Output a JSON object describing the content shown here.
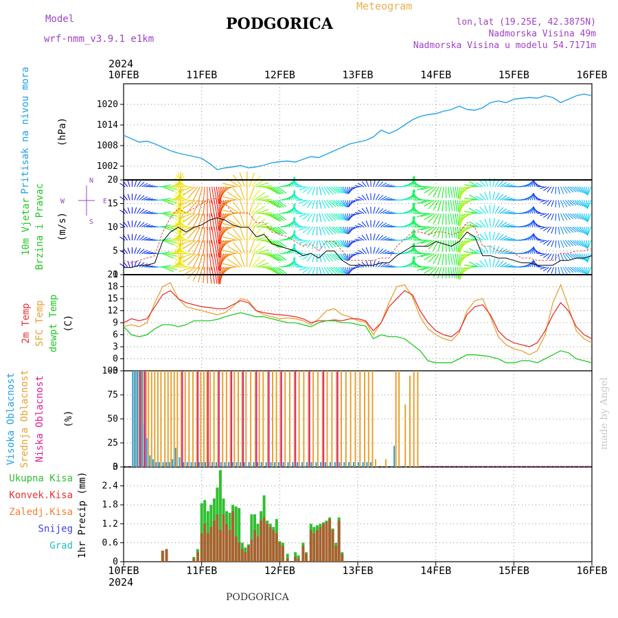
{
  "header": {
    "model_label": "Model",
    "model_name": "wrf-nmm_v3.9.1 e1km",
    "title": "PODGORICA",
    "meteogram": "Meteogram",
    "lonlat": "lon,lat (19.25E, 42.3875N)",
    "elevation": "Nadmorska Visina 49m",
    "model_elevation": "Nadmorska Visina u modelu 54.7171m"
  },
  "footer": {
    "location": "PODGORICA",
    "credit": "made by Angel"
  },
  "time_axis": {
    "year": "2024",
    "labels": [
      "10FEB",
      "11FEB",
      "12FEB",
      "13FEB",
      "14FEB",
      "15FEB",
      "16FEB"
    ]
  },
  "panel_labels": {
    "pressure": [
      "Pritisak na nivou mora"
    ],
    "pressure_unit": "(hPa)",
    "wind": [
      "10m Vjetar",
      "Brzina i Pravac"
    ],
    "wind_unit": "(m/s)",
    "wind_compass": [
      "W",
      "N",
      "E",
      "S"
    ],
    "temp": [
      "2m Temp",
      "SFC Temp",
      "dewpt Temp"
    ],
    "temp_unit": "(C)",
    "cloud": [
      "Visoka Oblacnost",
      "Srednja Oblacnost",
      "Niska Oblacnost"
    ],
    "cloud_unit": "(%)",
    "precip_legend": [
      "Ukupna Kisa",
      "Konvek.Kisa",
      "Zaledj.Kisa",
      "Snijeg",
      "Grad"
    ],
    "precip_unit": "1hr Precip (mm)"
  },
  "colors": {
    "pressure": "#20a0e8",
    "temp2m": "#e83030",
    "sfc": "#e8a030",
    "dew": "#20c820",
    "wind_line": "#000000",
    "gust": "#e84040",
    "cloud_high": "#20a0e8",
    "cloud_mid": "#e8a030",
    "cloud_low": "#e02090",
    "rain_total": "#30c030",
    "rain_conv": "#e83030",
    "freezing": "#f08030",
    "snow": "#4040e0",
    "hail": "#20c0c0",
    "purple": "#a040c8"
  },
  "chart_data": [
    {
      "type": "line",
      "name": "sea-level pressure",
      "ylabel": "(hPa)",
      "ylim": [
        998,
        1026
      ],
      "yticks": [
        1002,
        1008,
        1014,
        1020
      ],
      "x_days": [
        0,
        0.1,
        0.2,
        0.3,
        0.4,
        0.5,
        0.6,
        0.7,
        0.8,
        0.9,
        1.0,
        1.1,
        1.2,
        1.3,
        1.4,
        1.5,
        1.6,
        1.7,
        1.8,
        1.9,
        2.0,
        2.1,
        2.2,
        2.3,
        2.4,
        2.5,
        2.6,
        2.7,
        2.8,
        2.9,
        3.0,
        3.1,
        3.2,
        3.3,
        3.4,
        3.5,
        3.6,
        3.7,
        3.8,
        3.9,
        4.0,
        4.1,
        4.2,
        4.3,
        4.4,
        4.5,
        4.6,
        4.7,
        4.8,
        4.9,
        5.0,
        5.1,
        5.2,
        5.3,
        5.4,
        5.5,
        5.6,
        5.7,
        5.8,
        5.9,
        6.0
      ],
      "values": [
        1011,
        1010,
        1009,
        1009.3,
        1008.5,
        1007.5,
        1006.5,
        1005.8,
        1005.3,
        1004.8,
        1004.3,
        1002.8,
        1001.0,
        1001.5,
        1001.8,
        1002.2,
        1001.5,
        1001.8,
        1002.3,
        1003.0,
        1003.3,
        1003.5,
        1003.2,
        1004.0,
        1004.8,
        1004.5,
        1005.5,
        1006.5,
        1007.5,
        1008.5,
        1009.0,
        1009.5,
        1010.5,
        1012.5,
        1011.5,
        1012.5,
        1014.0,
        1015.5,
        1016.5,
        1017.0,
        1017.3,
        1018.0,
        1018.5,
        1019.5,
        1018.5,
        1018.3,
        1019.0,
        1020.5,
        1021.0,
        1020.5,
        1021.5,
        1021.8,
        1022.0,
        1021.8,
        1022.5,
        1022.0,
        1020.5,
        1021.5,
        1022.5,
        1023.0,
        1022.5
      ]
    },
    {
      "type": "line",
      "name": "10m wind speed",
      "ylabel": "(m/s)",
      "ylim": [
        0,
        20
      ],
      "yticks": [
        0,
        5,
        10,
        15,
        20
      ],
      "x_days": [
        0,
        0.1,
        0.2,
        0.3,
        0.4,
        0.5,
        0.6,
        0.7,
        0.8,
        0.9,
        1.0,
        1.1,
        1.2,
        1.3,
        1.4,
        1.5,
        1.6,
        1.7,
        1.8,
        1.9,
        2.0,
        2.1,
        2.2,
        2.3,
        2.4,
        2.5,
        2.6,
        2.7,
        2.8,
        2.9,
        3.0,
        3.1,
        3.2,
        3.3,
        3.4,
        3.5,
        3.6,
        3.7,
        3.8,
        3.9,
        4.0,
        4.1,
        4.2,
        4.3,
        4.4,
        4.5,
        4.6,
        4.7,
        4.8,
        4.9,
        5.0,
        5.1,
        5.2,
        5.3,
        5.4,
        5.5,
        5.6,
        5.7,
        5.8,
        5.9,
        6.0
      ],
      "series": [
        {
          "name": "speed",
          "values": [
            1.5,
            1.5,
            2,
            2,
            2.5,
            7,
            9,
            10,
            9,
            10,
            10.5,
            11.5,
            12,
            11.5,
            10.5,
            10,
            10,
            8,
            8.5,
            6.5,
            6,
            5.5,
            5,
            4,
            4.5,
            3.5,
            5,
            5,
            3,
            2,
            2,
            2,
            2,
            2.5,
            2.5,
            4,
            5,
            6,
            6,
            6,
            7,
            6.5,
            6,
            7,
            9,
            8,
            4,
            4,
            3.5,
            3.5,
            3,
            2.5,
            2.5,
            2,
            2,
            2,
            3,
            3,
            3.5,
            3.5,
            4
          ]
        },
        {
          "values": [
            3,
            2.5,
            3,
            3.5,
            4,
            9,
            12,
            14,
            13,
            14,
            15,
            16,
            16,
            15,
            13,
            13,
            13,
            11,
            11,
            9,
            8.5,
            8,
            7,
            6,
            6.5,
            5,
            7,
            7,
            5,
            3,
            3,
            3,
            3,
            3.5,
            3.5,
            6,
            7.5,
            9,
            9,
            8.5,
            9,
            9,
            8.5,
            9,
            11,
            10,
            6,
            6,
            5,
            5,
            4.5,
            3.5,
            3.5,
            3,
            3,
            3,
            4.5,
            4.5,
            5,
            5,
            5.5
          ]
        }
      ]
    },
    {
      "type": "line",
      "name": "temperature",
      "ylabel": "(C)",
      "ylim": [
        -3,
        21
      ],
      "yticks": [
        -3,
        0,
        3,
        6,
        9,
        12,
        15,
        18,
        21
      ],
      "x_days": [
        0,
        0.1,
        0.2,
        0.3,
        0.4,
        0.5,
        0.6,
        0.7,
        0.8,
        0.9,
        1.0,
        1.1,
        1.2,
        1.3,
        1.4,
        1.5,
        1.6,
        1.7,
        1.8,
        1.9,
        2.0,
        2.1,
        2.2,
        2.3,
        2.4,
        2.5,
        2.6,
        2.7,
        2.8,
        2.9,
        3.0,
        3.1,
        3.2,
        3.3,
        3.4,
        3.5,
        3.6,
        3.7,
        3.8,
        3.9,
        4.0,
        4.1,
        4.2,
        4.3,
        4.4,
        4.5,
        4.6,
        4.7,
        4.8,
        4.9,
        5.0,
        5.1,
        5.2,
        5.3,
        5.4,
        5.5,
        5.6,
        5.7,
        5.8,
        5.9,
        6.0
      ],
      "series": [
        {
          "name": "2m Temp",
          "values": [
            9,
            10,
            9.5,
            10,
            13,
            16,
            17,
            15,
            14,
            13.5,
            13,
            12.8,
            12.5,
            12.5,
            13.5,
            14.5,
            14,
            12,
            11.5,
            11.2,
            11,
            10.8,
            10.5,
            10,
            9,
            9.5,
            9.5,
            9.7,
            9.5,
            10,
            10,
            9.5,
            7,
            9,
            13,
            15,
            17,
            16,
            12,
            9,
            7,
            6,
            5.5,
            7,
            11,
            13,
            13.5,
            11,
            7,
            5,
            4,
            3.5,
            3,
            4,
            7,
            11,
            14,
            12,
            8,
            6,
            5
          ]
        },
        {
          "name": "SFC Temp",
          "values": [
            8,
            8.5,
            8,
            9,
            14,
            18,
            19,
            15,
            13,
            12.5,
            12,
            11.5,
            11,
            11.5,
            13,
            15,
            14.5,
            12,
            11,
            10.5,
            10,
            10.2,
            10,
            9.5,
            8.5,
            10,
            12,
            12.5,
            11,
            10.5,
            9.5,
            9.2,
            6,
            9,
            14,
            18,
            18.5,
            15.5,
            10.5,
            7.5,
            6,
            5,
            4.5,
            6.5,
            12,
            14.5,
            15,
            10.5,
            5.5,
            3.5,
            2.5,
            2,
            1,
            2,
            6,
            14,
            18.5,
            13,
            7,
            5,
            4
          ]
        },
        {
          "name": "dewpt Temp",
          "values": [
            8,
            6,
            5.5,
            6,
            7.5,
            8.5,
            8.5,
            8,
            8.5,
            9.5,
            9.5,
            9.5,
            9.8,
            10.5,
            11,
            11.5,
            11,
            10.5,
            10.5,
            10,
            9.5,
            9,
            9,
            8.5,
            8,
            9,
            9.5,
            9.5,
            9,
            9,
            8.5,
            8.2,
            5,
            6,
            5.5,
            5.5,
            5,
            3.5,
            2,
            -0.5,
            -1,
            -1,
            -1,
            0,
            1,
            1,
            0.8,
            0.5,
            0,
            -1,
            -1,
            -0.5,
            -0.5,
            -1,
            0,
            1,
            2,
            1.5,
            0,
            -0.5,
            -1
          ]
        }
      ]
    },
    {
      "type": "bar",
      "name": "cloud cover",
      "ylabel": "(%)",
      "ylim": [
        0,
        100
      ],
      "yticks": [
        0,
        25,
        50,
        75,
        100
      ],
      "x_days": [
        0.13,
        0.16,
        0.19,
        0.22,
        0.25,
        0.28,
        0.31,
        0.35,
        0.39,
        0.43,
        0.47,
        0.52,
        0.56,
        0.6,
        0.64,
        0.68,
        0.73,
        0.78,
        0.83,
        0.88,
        0.93,
        0.98,
        1.02,
        1.06,
        1.1,
        1.15,
        1.2,
        1.26,
        1.31,
        1.36,
        1.41,
        1.46,
        1.51,
        1.56,
        1.62,
        1.68,
        1.73,
        1.78,
        1.84,
        1.9,
        1.95,
        2.0,
        2.06,
        2.12,
        2.18,
        2.24,
        2.3,
        2.36,
        2.42,
        2.48,
        2.54,
        2.6,
        2.66,
        2.72,
        2.78,
        2.84,
        2.9,
        2.96,
        3.02,
        3.08,
        3.13,
        3.18,
        3.22,
        3.35,
        3.42,
        3.48,
        3.52,
        3.6,
        3.66,
        3.71,
        3.76
      ],
      "series": [
        {
          "name": "Srednja Oblacnost",
          "values": [
            100,
            100,
            100,
            100,
            100,
            100,
            100,
            100,
            100,
            100,
            100,
            100,
            100,
            100,
            100,
            100,
            100,
            100,
            100,
            100,
            100,
            100,
            100,
            100,
            100,
            100,
            100,
            100,
            100,
            100,
            100,
            100,
            100,
            100,
            100,
            100,
            100,
            100,
            100,
            100,
            100,
            100,
            100,
            100,
            100,
            100,
            100,
            100,
            100,
            100,
            100,
            100,
            100,
            100,
            100,
            100,
            100,
            100,
            100,
            100,
            100,
            100,
            8,
            8,
            0,
            100,
            100,
            65,
            95,
            100,
            100
          ]
        },
        {
          "name": "Visoka Oblacnost",
          "values": [
            100,
            100,
            100,
            100,
            100,
            45,
            30,
            12,
            8,
            5,
            5,
            5,
            5,
            5,
            8,
            20,
            10,
            5,
            5,
            5,
            5,
            5,
            5,
            5,
            5,
            5,
            5,
            5,
            5,
            5,
            5,
            5,
            5,
            5,
            5,
            5,
            5,
            5,
            5,
            5,
            5,
            5,
            5,
            5,
            5,
            5,
            5,
            5,
            5,
            5,
            5,
            5,
            5,
            5,
            5,
            5,
            5,
            5,
            5,
            5,
            5,
            5,
            0,
            0,
            0,
            22,
            0,
            0,
            0,
            0,
            0
          ]
        },
        {
          "name": "Niska Oblacnost",
          "values": [
            0,
            0,
            100,
            0,
            100,
            0,
            0,
            0,
            0,
            0,
            0,
            0,
            0,
            0,
            0,
            0,
            100,
            0,
            0,
            0,
            100,
            0,
            0,
            100,
            0,
            0,
            100,
            0,
            0,
            100,
            0,
            0,
            100,
            0,
            0,
            100,
            0,
            0,
            100,
            0,
            0,
            100,
            0,
            0,
            100,
            0,
            0,
            100,
            0,
            0,
            100,
            0,
            0,
            100,
            0,
            0,
            0,
            0,
            0,
            0,
            0,
            0,
            0,
            0,
            0,
            0,
            0,
            0,
            0,
            0,
            0
          ]
        }
      ]
    },
    {
      "type": "bar",
      "name": "1hr precipitation",
      "ylabel": "1hr Precip (mm)",
      "ylim": [
        0,
        3
      ],
      "yticks": [
        0,
        0.6,
        1.2,
        1.8,
        2.4,
        3
      ],
      "x_days": [
        0.5,
        0.55,
        0.9,
        0.95,
        1.0,
        1.04,
        1.08,
        1.12,
        1.16,
        1.2,
        1.24,
        1.28,
        1.32,
        1.36,
        1.4,
        1.44,
        1.48,
        1.52,
        1.56,
        1.6,
        1.64,
        1.68,
        1.72,
        1.76,
        1.8,
        1.84,
        1.88,
        1.92,
        1.96,
        2.0,
        2.04,
        2.1,
        2.2,
        2.24,
        2.3,
        2.34,
        2.4,
        2.44,
        2.48,
        2.52,
        2.56,
        2.6,
        2.64,
        2.68,
        2.72,
        2.76,
        2.8
      ],
      "series": [
        {
          "name": "Ukupna Kisa",
          "values": [
            0.35,
            0.4,
            0.15,
            0.4,
            1.85,
            1.95,
            1.6,
            1.8,
            2.0,
            2.35,
            2.9,
            2.0,
            1.6,
            1.55,
            1.8,
            1.75,
            1.7,
            0.6,
            0.45,
            0.55,
            1.5,
            1.5,
            1.2,
            1.6,
            2.1,
            1.3,
            1.2,
            1.1,
            1.35,
            0.65,
            0.6,
            0.25,
            0.3,
            0.2,
            0.6,
            0.3,
            1.2,
            1.1,
            1.15,
            1.2,
            1.25,
            1.3,
            1.4,
            1.05,
            0.6,
            1.4,
            0.3
          ]
        },
        {
          "name": "Konvek.Kisa",
          "values": [
            0.35,
            0.4,
            0.1,
            0.3,
            0.9,
            1.2,
            0.9,
            1.1,
            1.3,
            1.5,
            1.0,
            1.5,
            1.2,
            1.0,
            1.6,
            0.8,
            0.6,
            0.4,
            0.3,
            0.5,
            0.7,
            1.0,
            0.8,
            1.3,
            1.4,
            1.2,
            1.1,
            1.0,
            0.9,
            0.6,
            0.5,
            0.1,
            0.15,
            0.1,
            0.5,
            0.25,
            1.0,
            0.9,
            1.0,
            1.1,
            1.2,
            1.25,
            1.35,
            1.0,
            0.5,
            1.3,
            0.25
          ]
        }
      ]
    }
  ]
}
